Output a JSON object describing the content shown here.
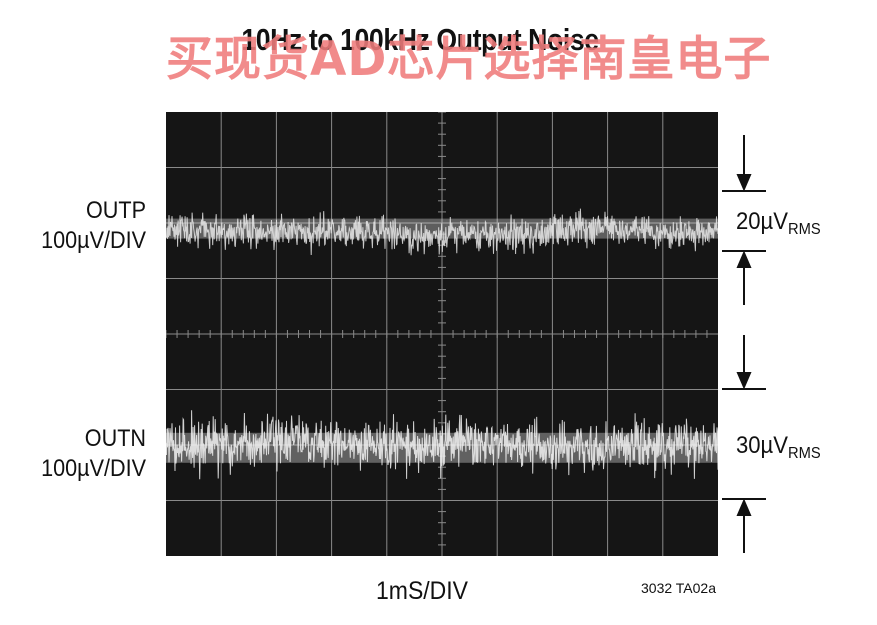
{
  "title": "10Hz to 100kHz Output Noise",
  "watermark": "买现货AD芯片选择南皇电子",
  "chart_data": {
    "type": "line",
    "title": "10Hz to 100kHz Output Noise",
    "xlabel": "1mS/DIV",
    "x_divisions": 10,
    "y_divisions": 8,
    "grid": true,
    "series": [
      {
        "name": "OUTP",
        "scale": "100µV/DIV",
        "noise": "20µVRMS",
        "noise_value_uV": 20,
        "center_div": 5.9,
        "color": "#e8e8e8"
      },
      {
        "name": "OUTN",
        "scale": "100µV/DIV",
        "noise": "30µVRMS",
        "noise_value_uV": 30,
        "center_div": 1.95,
        "color": "#f2f2f2"
      }
    ],
    "annotations": [
      {
        "series": "OUTP",
        "value_main": "20µV",
        "value_sub": "RMS"
      },
      {
        "series": "OUTN",
        "value_main": "30µV",
        "value_sub": "RMS"
      }
    ]
  },
  "labels": {
    "outp_name": "OUTP",
    "outp_scale": "100µV/DIV",
    "outn_name": "OUTN",
    "outn_scale": "100µV/DIV",
    "x_axis": "1mS/DIV",
    "figure_ref": "3032 TA02a"
  },
  "colors": {
    "screen": "#151515",
    "grid": "#8a8a8a",
    "trace": "#eeeeee",
    "watermark": "#f07c7c"
  }
}
